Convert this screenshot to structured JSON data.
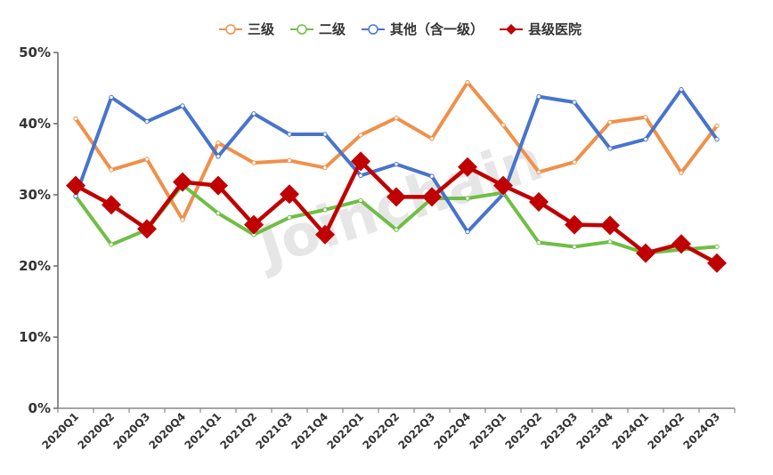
{
  "legend": {
    "items": [
      {
        "label": "三级",
        "color": "#F0904A",
        "marker": "circle"
      },
      {
        "label": "二级",
        "color": "#70BE45",
        "marker": "circle"
      },
      {
        "label": "其他（含一级）",
        "color": "#4874CB",
        "marker": "circle"
      },
      {
        "label": "县级医院",
        "color": "#C00000",
        "marker": "diamond"
      }
    ]
  },
  "watermark": "Joinchain",
  "chart_data": {
    "type": "line",
    "title": "",
    "xlabel": "",
    "ylabel": "",
    "ylim": [
      0,
      50
    ],
    "yticks": [
      "0%",
      "10%",
      "20%",
      "30%",
      "40%",
      "50%"
    ],
    "grid": false,
    "legend_position": "top",
    "categories": [
      "2020Q1",
      "2020Q2",
      "2020Q3",
      "2020Q4",
      "2021Q1",
      "2021Q2",
      "2021Q3",
      "2021Q4",
      "2022Q1",
      "2022Q2",
      "2022Q3",
      "2022Q4",
      "2023Q1",
      "2023Q2",
      "2023Q3",
      "2023Q4",
      "2024Q1",
      "2024Q2",
      "2024Q3"
    ],
    "series": [
      {
        "name": "三级",
        "color": "#F0904A",
        "values": [
          40.7,
          33.5,
          35.0,
          26.5,
          37.3,
          34.5,
          34.8,
          33.8,
          38.4,
          40.8,
          37.9,
          45.8,
          39.8,
          33.2,
          34.6,
          40.2,
          40.9,
          33.1,
          39.7
        ]
      },
      {
        "name": "二级",
        "color": "#70BE45",
        "values": [
          29.8,
          23.0,
          25.1,
          31.4,
          27.4,
          24.4,
          26.8,
          27.9,
          29.2,
          25.1,
          29.5,
          29.5,
          30.3,
          23.3,
          22.7,
          23.4,
          21.8,
          22.3,
          22.7
        ]
      },
      {
        "name": "其他（含一级）",
        "color": "#4874CB",
        "values": [
          29.8,
          43.7,
          40.3,
          42.5,
          35.4,
          41.4,
          38.5,
          38.5,
          32.7,
          34.3,
          32.6,
          24.8,
          30.1,
          43.8,
          43.0,
          36.5,
          37.8,
          44.8,
          37.8
        ]
      },
      {
        "name": "县级医院",
        "color": "#C00000",
        "values": [
          31.3,
          28.6,
          25.2,
          31.8,
          31.3,
          25.8,
          30.1,
          24.4,
          34.7,
          29.7,
          29.7,
          33.9,
          31.3,
          29.0,
          25.8,
          25.7,
          21.8,
          23.1,
          20.4
        ]
      }
    ]
  }
}
